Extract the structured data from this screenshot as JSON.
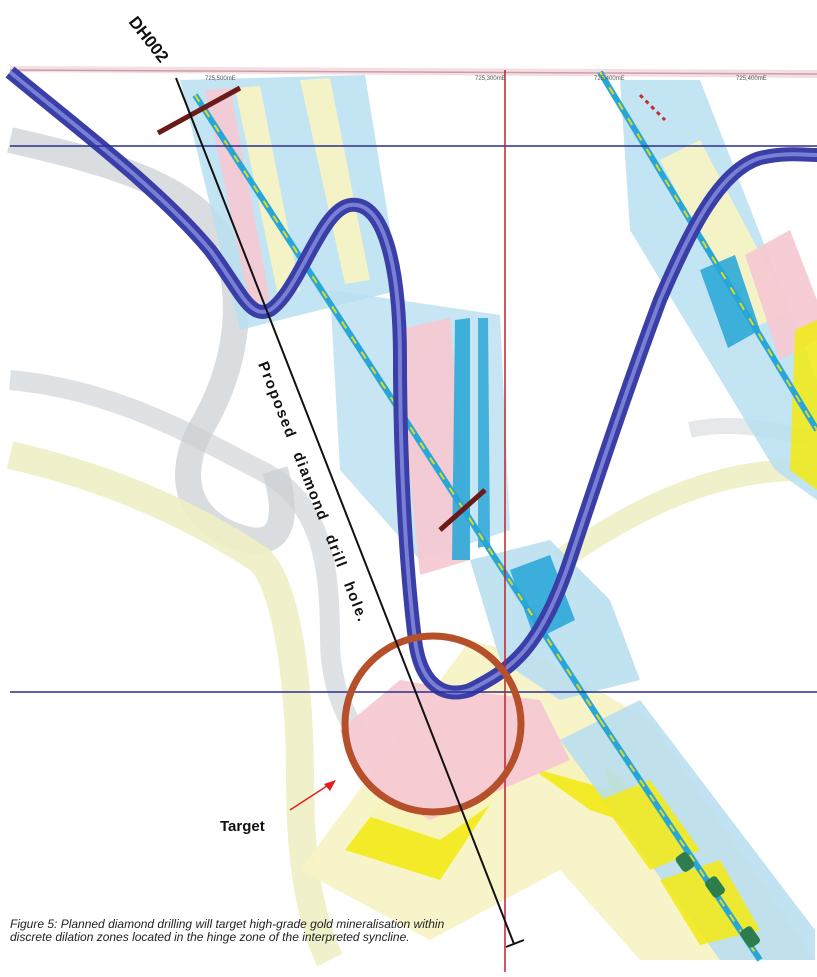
{
  "hole_name": "DH002",
  "hole_label": "Proposed diamond drill hole.",
  "target_label": "Target",
  "caption": "Figure 5: Planned diamond drilling will target high-grade gold mineralisation within discrete dilation zones located in the hinge zone of the interpreted syncline.",
  "grid_labels": [
    "725,500mE",
    "725,300mE",
    "725,400mE",
    "725,400mE"
  ],
  "colors": {
    "syncline": "#3a3fa8",
    "grid_line": "#2a2f8c",
    "section_line": "#c0202a",
    "target_ring": "#b5502a",
    "target_arrow": "#e02020",
    "drillhole": "#111111",
    "pink_unit": "#f6c9d3",
    "blue_unit": "#b9dff0",
    "cream_unit": "#f7f3c4",
    "yellow_unit": "#f2ea1e",
    "grey_ribbon": "#c9cfd2",
    "pale_ribbon": "#eef0c4"
  }
}
